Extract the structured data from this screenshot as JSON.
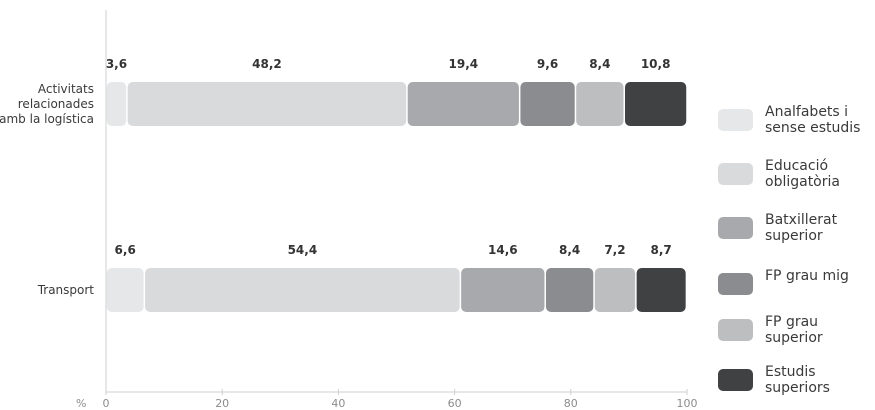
{
  "chart_data": {
    "type": "bar",
    "orientation": "horizontal",
    "stacked": true,
    "unit_label": "%",
    "categories": [
      "Activitats relacionades amb la logística",
      "Transport"
    ],
    "category_lines": [
      [
        "Activitats",
        "relacionades",
        "amb la logística"
      ],
      [
        "Transport"
      ]
    ],
    "series": [
      {
        "name": "Analfabets i sense estudis",
        "color": "#e6e7e8",
        "values": [
          3.6,
          6.6
        ],
        "labels": [
          "3,6",
          "6,6"
        ]
      },
      {
        "name": "Educació obligatòria",
        "color": "#d9dadb",
        "values": [
          48.2,
          54.4
        ],
        "labels": [
          "48,2",
          "54,4"
        ]
      },
      {
        "name": "Batxillerat superior",
        "color": "#a7a9ac",
        "values": [
          19.4,
          14.6
        ],
        "labels": [
          "19,4",
          "14,6"
        ]
      },
      {
        "name": "FP grau mig",
        "color": "#8a8c8f",
        "values": [
          9.6,
          8.4
        ],
        "labels": [
          "9,6",
          "8,4"
        ]
      },
      {
        "name": "FP grau superior",
        "color": "#bcbec0",
        "values": [
          8.4,
          7.2
        ],
        "labels": [
          "8,4",
          "7,2"
        ]
      },
      {
        "name": "Estudis superiors",
        "color": "#404143",
        "values": [
          10.8,
          8.7
        ],
        "labels": [
          "10,8",
          "8,7"
        ]
      }
    ],
    "xlim": [
      0,
      100
    ],
    "xticks": [
      0,
      20,
      40,
      60,
      80,
      100
    ],
    "legend_position": "right",
    "grid": false
  }
}
